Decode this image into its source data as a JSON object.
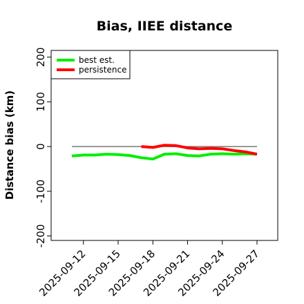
{
  "chart_data": {
    "type": "line",
    "title": "Bias, IIEE distance",
    "xlabel": "",
    "ylabel": "Distance bias (km)",
    "xlim": [
      "2025-09-11",
      "2025-09-27"
    ],
    "ylim": [
      -210,
      215
    ],
    "x_ticks": [
      "2025-09-12",
      "2025-09-15",
      "2025-09-18",
      "2025-09-21",
      "2025-09-24",
      "2025-09-27"
    ],
    "y_ticks": [
      -200,
      -100,
      0,
      100,
      200
    ],
    "reference_line": 0,
    "legend": {
      "position": "top-left"
    },
    "grid": false,
    "series": [
      {
        "name": "best est.",
        "color": "#00ee00",
        "x": [
          "2025-09-11",
          "2025-09-12",
          "2025-09-13",
          "2025-09-14",
          "2025-09-15",
          "2025-09-16",
          "2025-09-17",
          "2025-09-18",
          "2025-09-19",
          "2025-09-20",
          "2025-09-21",
          "2025-09-22",
          "2025-09-23",
          "2025-09-24",
          "2025-09-25",
          "2025-09-26",
          "2025-09-27"
        ],
        "y": [
          -21,
          -19,
          -19,
          -17,
          -18,
          -20,
          -25,
          -28,
          -17,
          -16,
          -20,
          -21,
          -17,
          -16,
          -17,
          -16,
          -17
        ]
      },
      {
        "name": "persistence",
        "color": "#ff0000",
        "x": [
          "2025-09-17",
          "2025-09-18",
          "2025-09-19",
          "2025-09-20",
          "2025-09-21",
          "2025-09-22",
          "2025-09-23",
          "2025-09-24",
          "2025-09-25",
          "2025-09-26",
          "2025-09-27"
        ],
        "y": [
          0,
          -2,
          3,
          2,
          -3,
          -5,
          -4,
          -5,
          -9,
          -12,
          -17
        ]
      }
    ]
  }
}
